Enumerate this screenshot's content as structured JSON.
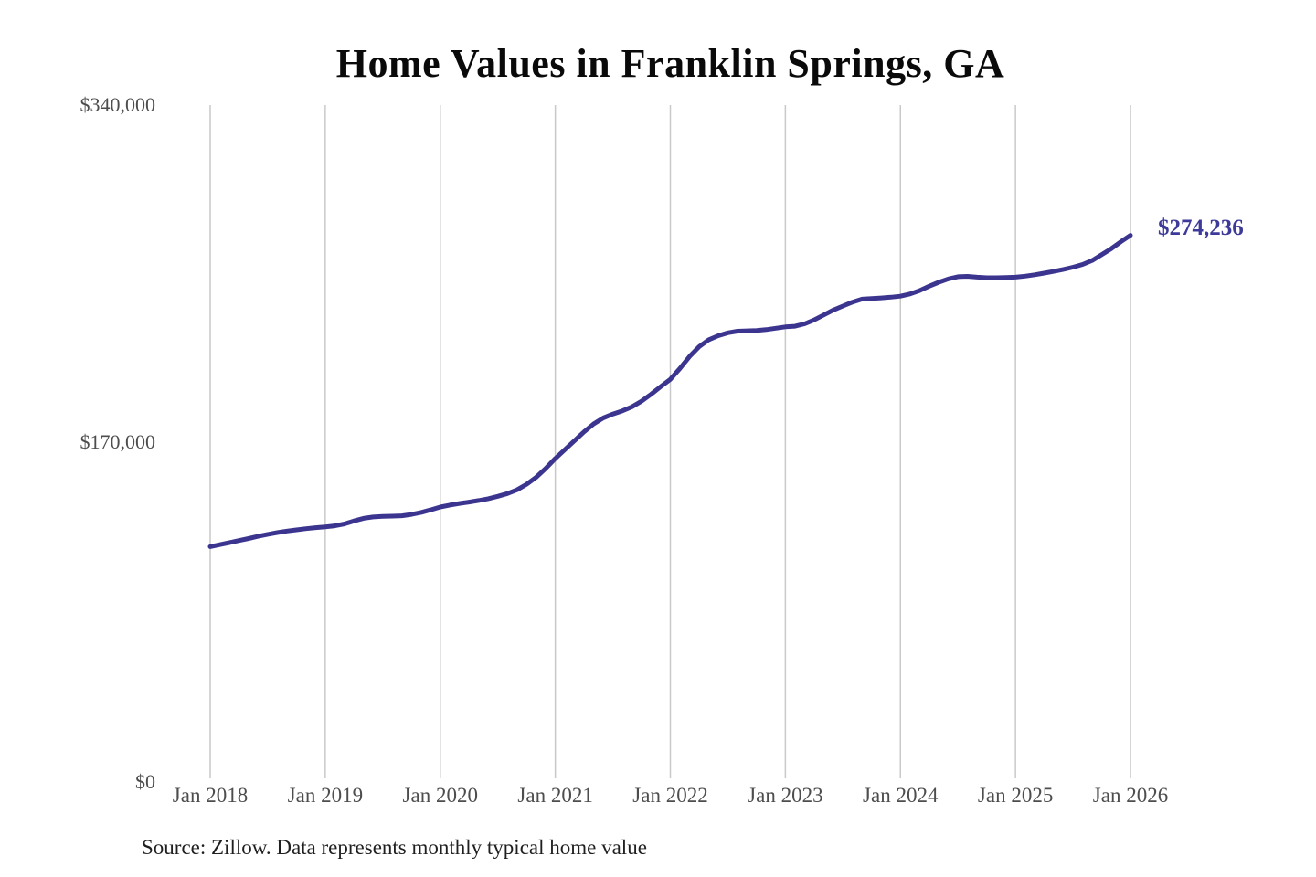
{
  "page": {
    "background_color": "#ffffff"
  },
  "chart_data": {
    "type": "line",
    "title": "Home Values in Franklin Springs, GA",
    "xlabel": "",
    "ylabel": "",
    "frequency": "monthly",
    "x_start": "Jan 2018",
    "x_end": "Jan 2026",
    "x_ticks": [
      "Jan 2018",
      "Jan 2019",
      "Jan 2020",
      "Jan 2021",
      "Jan 2022",
      "Jan 2023",
      "Jan 2024",
      "Jan 2025",
      "Jan 2026"
    ],
    "y_ticks": [
      {
        "label": "$0",
        "value": 0
      },
      {
        "label": "$170,000",
        "value": 170000
      },
      {
        "label": "$340,000",
        "value": 340000
      }
    ],
    "ylim": [
      0,
      340000
    ],
    "grid": "vertical-only",
    "legend": "none",
    "end_label": "$274,236",
    "last_value": 274236,
    "line_color": "#3c3590",
    "end_label_color": "#3d3a99",
    "grid_color": "#c9c9c9",
    "tick_color": "#4d4d4d",
    "title_color": "#0a0a0a",
    "values": [
      117000,
      118000,
      119000,
      120100,
      121100,
      122200,
      123200,
      124100,
      124900,
      125500,
      126100,
      126600,
      127000,
      127500,
      128500,
      130000,
      131300,
      132000,
      132300,
      132400,
      132600,
      133300,
      134300,
      135600,
      137000,
      138000,
      138800,
      139500,
      140300,
      141200,
      142400,
      143800,
      145700,
      148500,
      152000,
      156500,
      161500,
      166000,
      170500,
      175000,
      179000,
      182000,
      184000,
      185600,
      187600,
      190500,
      194000,
      197800,
      201500,
      207000,
      213000,
      218000,
      221500,
      223500,
      225000,
      225800,
      226000,
      226200,
      226600,
      227300,
      228000,
      228300,
      229500,
      231500,
      234000,
      236500,
      238500,
      240500,
      242000,
      242300,
      242600,
      243000,
      243500,
      244600,
      246300,
      248500,
      250500,
      252200,
      253300,
      253500,
      253100,
      252800,
      252800,
      252900,
      253100,
      253600,
      254300,
      255100,
      256000,
      257000,
      258100,
      259500,
      261500,
      264500,
      267500,
      271000,
      274236
    ],
    "source": "Source: Zillow. Data represents monthly typical home value"
  }
}
